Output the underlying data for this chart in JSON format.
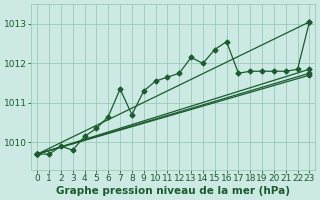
{
  "xlabel": "Graphe pression niveau de la mer (hPa)",
  "xlim": [
    -0.5,
    23.5
  ],
  "ylim": [
    1009.3,
    1013.5
  ],
  "yticks": [
    1010,
    1011,
    1012,
    1013
  ],
  "xticks": [
    0,
    1,
    2,
    3,
    4,
    5,
    6,
    7,
    8,
    9,
    10,
    11,
    12,
    13,
    14,
    15,
    16,
    17,
    18,
    19,
    20,
    21,
    22,
    23
  ],
  "background_color": "#cce9e4",
  "grid_color": "#99ccbb",
  "line_color": "#1a5c2e",
  "zigzag": [
    1009.7,
    1009.7,
    1009.9,
    1009.8,
    1010.15,
    1010.35,
    1010.65,
    1011.35,
    1010.7,
    1011.3,
    1011.55,
    1011.65,
    1011.75,
    1012.15,
    1012.0,
    1012.35,
    1012.55,
    1011.75,
    1011.8,
    1011.8,
    1011.8,
    1011.8,
    1011.85,
    1013.05
  ],
  "straight_lines": [
    {
      "x": [
        0,
        23
      ],
      "y": [
        1009.7,
        1013.05
      ]
    },
    {
      "x": [
        0,
        23
      ],
      "y": [
        1009.7,
        1011.85
      ]
    },
    {
      "x": [
        0,
        23
      ],
      "y": [
        1009.7,
        1011.75
      ]
    },
    {
      "x": [
        0,
        23
      ],
      "y": [
        1009.7,
        1011.7
      ]
    }
  ],
  "marker": "D",
  "markersize": 2.5,
  "linewidth": 0.9,
  "font_color": "#1a5c2e",
  "tick_fontsize": 6.5
}
